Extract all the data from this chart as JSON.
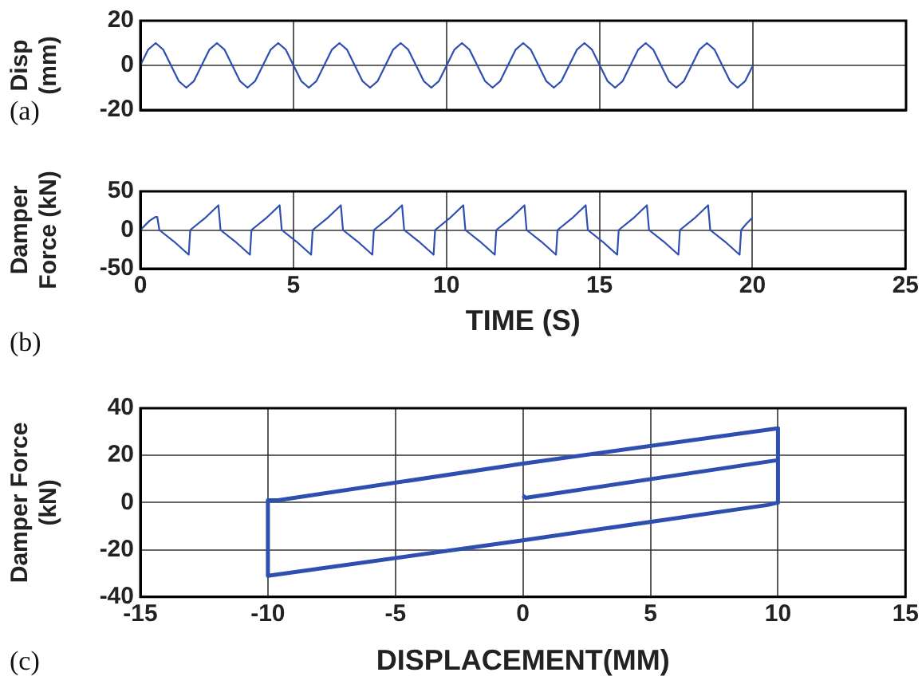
{
  "chart_data": [
    {
      "type": "line",
      "ylabel": "Disp\n(mm)",
      "annotations": [
        "(a)"
      ],
      "xlim": [
        0,
        25
      ],
      "xticks": [
        0,
        5,
        10,
        15,
        20,
        25
      ],
      "ylim": [
        -20,
        20
      ],
      "yticks": [
        -20,
        0,
        20
      ],
      "grid": true,
      "legend": false,
      "tick_labels": "y",
      "marker": "none",
      "line_style": "solid",
      "series": [
        {
          "color": "#2f4fb0",
          "x": [
            0,
            0.25,
            0.5,
            0.75,
            1,
            1.25,
            1.5,
            1.75,
            2,
            2.25,
            2.5,
            2.75,
            3,
            3.25,
            3.5,
            3.75,
            4,
            4.25,
            4.5,
            4.75,
            5,
            5.25,
            5.5,
            5.75,
            6,
            6.25,
            6.5,
            6.75,
            7,
            7.25,
            7.5,
            7.75,
            8,
            8.25,
            8.5,
            8.75,
            9,
            9.25,
            9.5,
            9.75,
            10,
            10.25,
            10.5,
            10.75,
            11,
            11.25,
            11.5,
            11.75,
            12,
            12.25,
            12.5,
            12.75,
            13,
            13.25,
            13.5,
            13.75,
            14,
            14.25,
            14.5,
            14.75,
            15,
            15.25,
            15.5,
            15.75,
            16,
            16.25,
            16.5,
            16.75,
            17,
            17.25,
            17.5,
            17.75,
            18,
            18.25,
            18.5,
            18.75,
            19,
            19.25,
            19.5,
            19.75,
            20
          ],
          "values": [
            0,
            7,
            10,
            7,
            0,
            -7,
            -10,
            -7,
            0,
            7,
            10,
            7,
            0,
            -7,
            -10,
            -7,
            0,
            7,
            10,
            7,
            0,
            -7,
            -10,
            -7,
            0,
            7,
            10,
            7,
            0,
            -7,
            -10,
            -7,
            0,
            7,
            10,
            7,
            0,
            -7,
            -10,
            -7,
            0,
            7,
            10,
            7,
            0,
            -7,
            -10,
            -7,
            0,
            7,
            10,
            7,
            0,
            -7,
            -10,
            -7,
            0,
            7,
            10,
            7,
            0,
            -7,
            -10,
            -7,
            0,
            7,
            10,
            7,
            0,
            -7,
            -10,
            -7,
            0,
            7,
            10,
            7,
            0,
            -7,
            -10,
            -7,
            0
          ]
        }
      ]
    },
    {
      "type": "line",
      "xlabel": "TIME (S)",
      "ylabel": "Damper\nForce (kN)",
      "annotations": [
        "(b)"
      ],
      "xlim": [
        0,
        25
      ],
      "xticks": [
        0,
        5,
        10,
        15,
        20,
        25
      ],
      "ylim": [
        -50,
        50
      ],
      "yticks": [
        -50,
        0,
        50
      ],
      "grid": true,
      "legend": false,
      "marker": "none",
      "line_style": "solid",
      "series": [
        {
          "color": "#2f4fb0",
          "x": [
            0,
            0.3,
            0.5,
            0.55,
            0.62,
            1.1,
            1.58,
            1.63,
            2.1,
            2.55,
            2.62,
            3.1,
            3.58,
            3.63,
            4.1,
            4.55,
            4.62,
            5.1,
            5.58,
            5.63,
            6.1,
            6.55,
            6.62,
            7.1,
            7.58,
            7.63,
            8.1,
            8.55,
            8.62,
            9.1,
            9.58,
            9.63,
            10.1,
            10.55,
            10.62,
            11.1,
            11.58,
            11.63,
            12.1,
            12.55,
            12.62,
            13.1,
            13.58,
            13.63,
            14.1,
            14.55,
            14.62,
            15.1,
            15.58,
            15.63,
            16.1,
            16.55,
            16.62,
            17.1,
            17.58,
            17.63,
            18.1,
            18.55,
            18.62,
            19.1,
            19.58,
            19.63,
            19.8,
            20
          ],
          "values": [
            0,
            12,
            17,
            17,
            0,
            -15,
            -32,
            0,
            15,
            32,
            0,
            -15,
            -32,
            0,
            15,
            32,
            0,
            -15,
            -32,
            0,
            15,
            32,
            0,
            -15,
            -32,
            0,
            15,
            32,
            0,
            -15,
            -32,
            0,
            15,
            32,
            0,
            -15,
            -32,
            0,
            15,
            32,
            0,
            -15,
            -32,
            0,
            15,
            32,
            0,
            -15,
            -32,
            0,
            15,
            32,
            0,
            -15,
            -32,
            0,
            15,
            32,
            0,
            -15,
            -32,
            0,
            8,
            16
          ]
        }
      ]
    },
    {
      "type": "line",
      "xlabel": "DISPLACEMENT(MM)",
      "ylabel": "Damper Force\n(kN)",
      "annotations": [
        "(c)"
      ],
      "xlim": [
        -15,
        15
      ],
      "xticks": [
        -15,
        -10,
        -5,
        0,
        5,
        10,
        15
      ],
      "ylim": [
        -40,
        40
      ],
      "yticks": [
        -40,
        -20,
        0,
        20,
        40
      ],
      "grid": true,
      "legend": false,
      "marker": "none",
      "line_style": "solid",
      "series": [
        {
          "color": "#2f4fb0",
          "x": [
            0,
            0.1,
            10,
            10,
            10,
            9.6,
            0,
            -10,
            -10,
            -9.6,
            0,
            10,
            10
          ],
          "values": [
            3,
            2,
            18,
            31,
            0,
            -1,
            -16,
            -31,
            1,
            1,
            16.5,
            31.5,
            0
          ]
        }
      ]
    }
  ]
}
